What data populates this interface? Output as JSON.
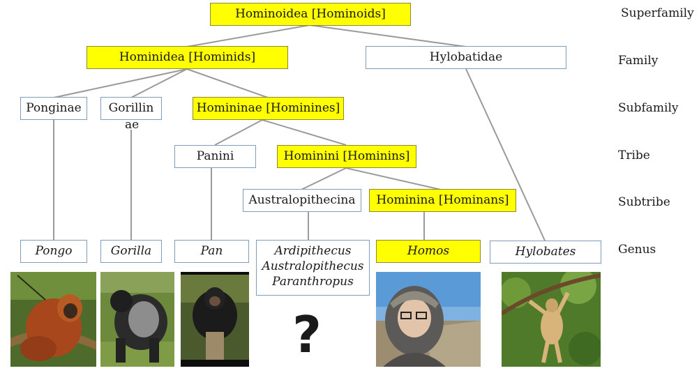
{
  "nodes": {
    "hominoidea": "Hominoidea [Hominoids]",
    "hominidea": "Hominidea [Hominids]",
    "hylobatidae": "Hylobatidae",
    "ponginae": "Ponginae",
    "gorillinae_line1": "Gorillin",
    "gorillinae_line2": "ae",
    "homininae": "Homininae [Hominines]",
    "panini": "Panini",
    "hominini": "Hominini [Hominins]",
    "australopithecina": "Australopithecina",
    "hominina": "Hominina [Hominans]",
    "pongo": "Pongo",
    "gorilla": "Gorilla",
    "pan": "Pan",
    "ardipithecus": "Ardipithecus",
    "australopithecus": "Australopithecus",
    "paranthropus": "Paranthropus",
    "homos": "Homos",
    "hylobates": "Hylobates"
  },
  "ranks": {
    "superfamily": "Superfamily",
    "family": "Family",
    "subfamily": "Subfamily",
    "tribe": "Tribe",
    "subtribe": "Subtribe",
    "genus": "Genus"
  },
  "unknown_mark": "?",
  "colors": {
    "highlight": "#ffff00",
    "border": "#7f9cbb",
    "connector": "#9a9a9a"
  }
}
